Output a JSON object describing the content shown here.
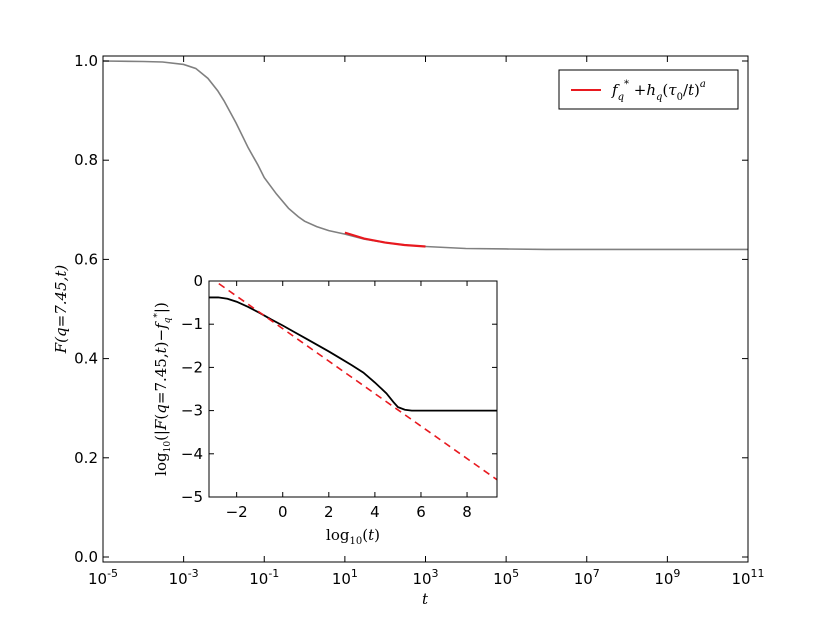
{
  "chart_data": [
    {
      "type": "line",
      "xscale": "log",
      "xlim": [
        1e-05,
        100000000000
      ],
      "ylim": [
        0.0,
        1.0
      ],
      "xlabel": "t",
      "ylabel": "F(q=7.45,t)",
      "x_ticks": [
        {
          "value": 1e-05,
          "base": "10",
          "exp": "-5"
        },
        {
          "value": 0.001,
          "base": "10",
          "exp": "-3"
        },
        {
          "value": 0.1,
          "base": "10",
          "exp": "-1"
        },
        {
          "value": 10,
          "base": "10",
          "exp": "1"
        },
        {
          "value": 1000,
          "base": "10",
          "exp": "3"
        },
        {
          "value": 100000,
          "base": "10",
          "exp": "5"
        },
        {
          "value": 10000000,
          "base": "10",
          "exp": "7"
        },
        {
          "value": 1000000000,
          "base": "10",
          "exp": "9"
        },
        {
          "value": 100000000000,
          "base": "10",
          "exp": "11"
        }
      ],
      "y_ticks": [
        {
          "value": 0.0,
          "label": "0.0"
        },
        {
          "value": 0.2,
          "label": "0.2"
        },
        {
          "value": 0.4,
          "label": "0.4"
        },
        {
          "value": 0.6,
          "label": "0.6"
        },
        {
          "value": 0.8,
          "label": "0.8"
        },
        {
          "value": 1.0,
          "label": "1.0"
        }
      ],
      "series": [
        {
          "color": "#808080",
          "x": [
            1e-05,
            0.0001,
            0.0003,
            0.001,
            0.002,
            0.004,
            0.007,
            0.01,
            0.02,
            0.04,
            0.07,
            0.1,
            0.2,
            0.4,
            0.7,
            1,
            2,
            4,
            10,
            30,
            100,
            300,
            1000,
            10000,
            100000,
            1000000,
            100000000,
            100000000000
          ],
          "y": [
            1.0,
            0.999,
            0.998,
            0.993,
            0.985,
            0.965,
            0.94,
            0.92,
            0.875,
            0.825,
            0.79,
            0.765,
            0.732,
            0.703,
            0.686,
            0.677,
            0.666,
            0.658,
            0.651,
            0.641,
            0.634,
            0.629,
            0.626,
            0.622,
            0.621,
            0.62,
            0.62,
            0.62
          ]
        },
        {
          "name": "f_q* + h_q(τ_0/t)^a",
          "color": "#e8191f",
          "x": [
            10,
            30,
            100,
            300,
            1000
          ],
          "y": [
            0.654,
            0.642,
            0.634,
            0.629,
            0.626
          ]
        }
      ],
      "legend": {
        "position": "top-right",
        "entries": [
          {
            "series": 1,
            "text": "f_q* + h_q(τ_0/t)^a"
          }
        ]
      }
    },
    {
      "type": "line",
      "placement": "inset",
      "xlim": [
        -3.2,
        9.3
      ],
      "ylim": [
        -5,
        0
      ],
      "xlabel": "log10(t)",
      "ylabel": "log10(|F(q=7.45,t) − f_q*|)",
      "x_ticks": [
        {
          "value": -2,
          "label": "−2"
        },
        {
          "value": 0,
          "label": "0"
        },
        {
          "value": 2,
          "label": "2"
        },
        {
          "value": 4,
          "label": "4"
        },
        {
          "value": 6,
          "label": "6"
        },
        {
          "value": 8,
          "label": "8"
        }
      ],
      "y_ticks": [
        {
          "value": 0,
          "label": "0"
        },
        {
          "value": -1,
          "label": "−1"
        },
        {
          "value": -2,
          "label": "−2"
        },
        {
          "value": -3,
          "label": "−3"
        },
        {
          "value": -4,
          "label": "−4"
        },
        {
          "value": -5,
          "label": "−5"
        }
      ],
      "series": [
        {
          "color": "#000000",
          "style": "solid",
          "x": [
            -3.2,
            -2.8,
            -2.4,
            -2.0,
            -1.5,
            -1.0,
            -0.5,
            0.0,
            0.5,
            1.0,
            1.5,
            2.0,
            2.5,
            3.0,
            3.5,
            4.0,
            4.5,
            4.8,
            5.0,
            5.3,
            5.6,
            6.0,
            7.0,
            8.0,
            9.3
          ],
          "y": [
            -0.38,
            -0.38,
            -0.41,
            -0.48,
            -0.6,
            -0.74,
            -0.89,
            -1.03,
            -1.18,
            -1.33,
            -1.48,
            -1.63,
            -1.79,
            -1.95,
            -2.12,
            -2.35,
            -2.6,
            -2.8,
            -2.92,
            -2.98,
            -3.0,
            -3.0,
            -3.0,
            -3.0,
            -3.0
          ]
        },
        {
          "color": "#e8191f",
          "style": "dashed",
          "x": [
            -3.2,
            9.3
          ],
          "y": [
            0.1,
            -4.6
          ]
        }
      ]
    }
  ]
}
